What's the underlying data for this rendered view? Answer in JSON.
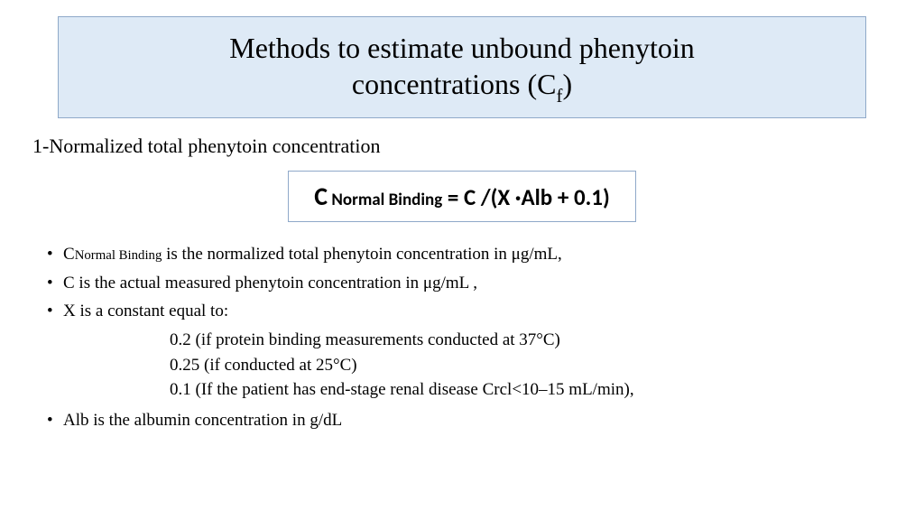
{
  "title": {
    "line1": "Methods to estimate unbound phenytoin",
    "line2_prefix": "concentrations (C",
    "line2_sub": "f",
    "line2_suffix": ")",
    "box_bg": "#deeaf6",
    "box_border": "#8fa9c9",
    "fontsize": 32
  },
  "section_heading": "1-Normalized total phenytoin concentration",
  "formula": {
    "c_big": "C",
    "sub_label": " Normal Binding",
    "rhs": " = C /(X ·Alb + 0.1)",
    "box_border": "#8fa9c9",
    "fontsize": 25
  },
  "bullets": {
    "b1_prefix": "C",
    "b1_sub": "Normal Binding",
    "b1_rest": " is the normalized total phenytoin concentration in μg/mL,",
    "b2": "C is the actual measured phenytoin concentration in μg/mL ,",
    "b3": "X is a constant equal to:",
    "x_opts": [
      "0.2 (if protein binding measurements conducted at 37°C)",
      "0.25 (if conducted at 25°C)",
      "0.1 (If the patient has end-stage renal disease Crcl<10–15 mL/min),"
    ],
    "b4": "Alb is the albumin concentration in g/dL",
    "fontsize": 19
  },
  "colors": {
    "text": "#000000",
    "background": "#ffffff"
  }
}
